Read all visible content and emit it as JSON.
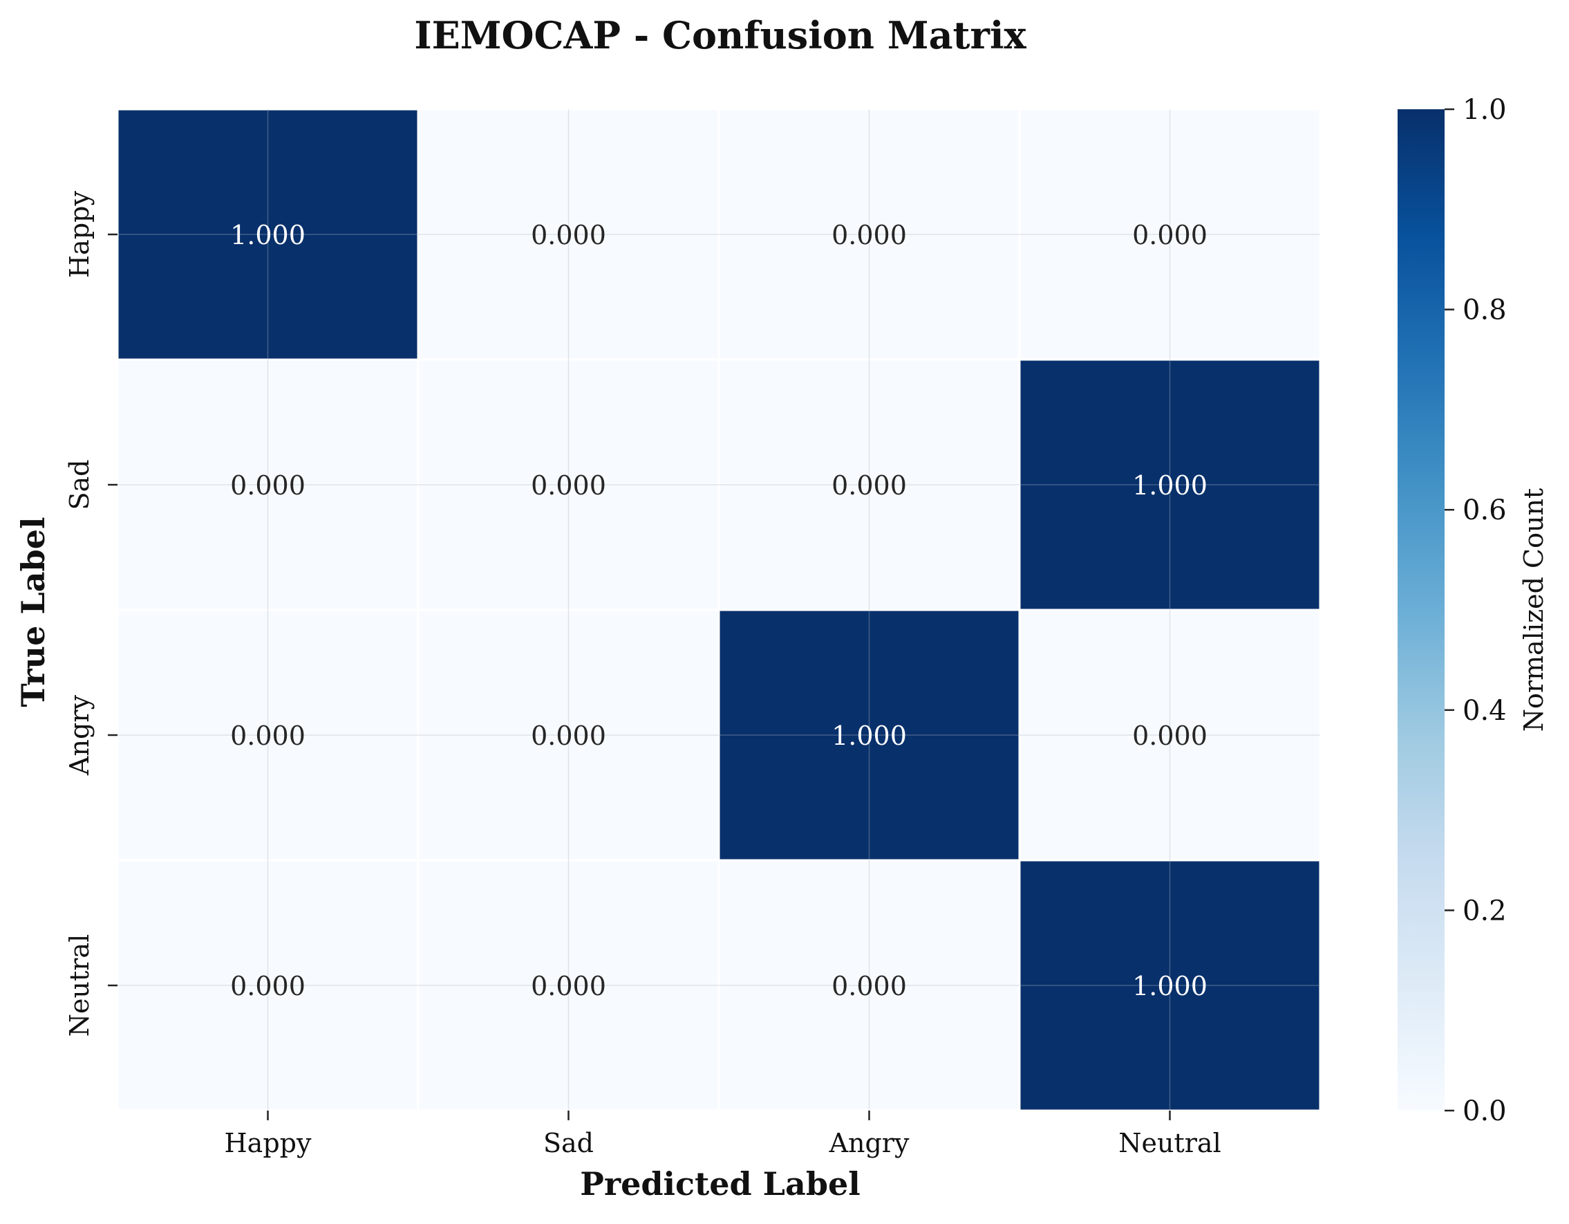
{
  "chart_data": {
    "type": "heatmap",
    "title": "IEMOCAP - Confusion Matrix",
    "xlabel": "Predicted Label",
    "ylabel": "True Label",
    "x_categories": [
      "Happy",
      "Sad",
      "Angry",
      "Neutral"
    ],
    "y_categories": [
      "Happy",
      "Sad",
      "Angry",
      "Neutral"
    ],
    "values": [
      [
        1.0,
        0.0,
        0.0,
        0.0
      ],
      [
        0.0,
        0.0,
        0.0,
        1.0
      ],
      [
        0.0,
        0.0,
        1.0,
        0.0
      ],
      [
        0.0,
        0.0,
        0.0,
        1.0
      ]
    ],
    "value_labels": [
      [
        "1.000",
        "0.000",
        "0.000",
        "0.000"
      ],
      [
        "0.000",
        "0.000",
        "0.000",
        "1.000"
      ],
      [
        "0.000",
        "0.000",
        "1.000",
        "0.000"
      ],
      [
        "0.000",
        "0.000",
        "0.000",
        "1.000"
      ]
    ],
    "colorbar": {
      "label": "Normalized Count",
      "range": [
        0,
        1
      ],
      "ticks": [
        "0.0",
        "0.2",
        "0.4",
        "0.6",
        "0.8",
        "1.0"
      ],
      "colormap": "Blues",
      "low_color": "#f7fbff",
      "high_color": "#08306b"
    },
    "grid": true
  }
}
